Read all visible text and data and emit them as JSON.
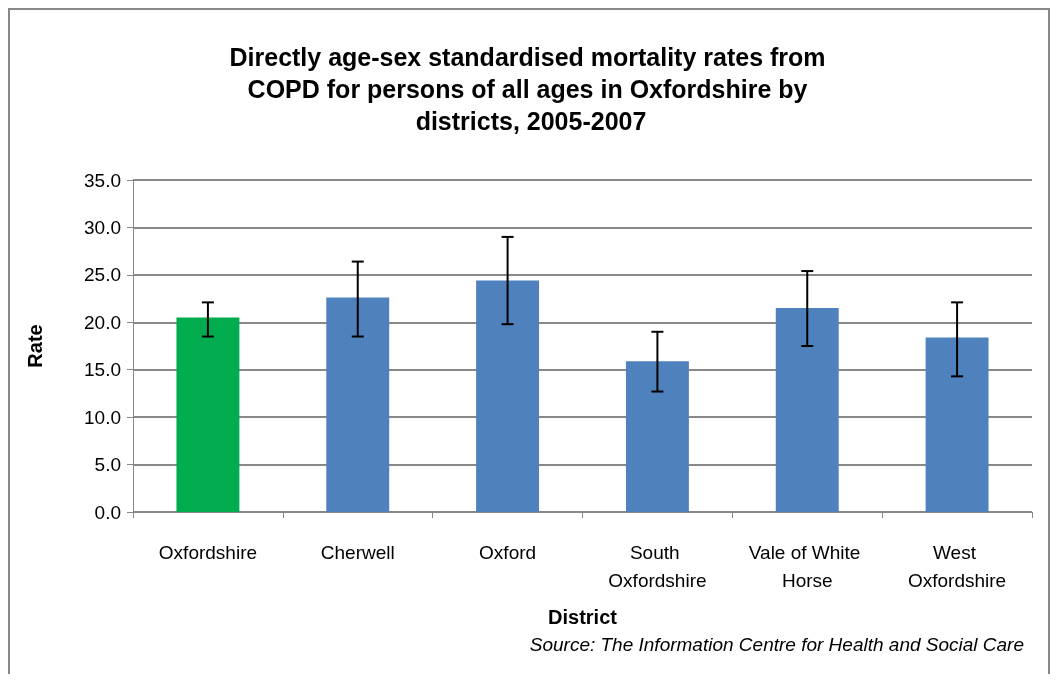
{
  "chart_data": {
    "type": "bar",
    "title": "Directly age-sex standardised mortality rates from COPD for persons of all ages in Oxfordshire by districts, 2005-2007",
    "xlabel": "District",
    "ylabel": "Rate",
    "categories": [
      "Oxfordshire",
      "Cherwell",
      "Oxford",
      "South Oxfordshire",
      "Vale of White Horse",
      "West Oxfordshire"
    ],
    "values": [
      20.5,
      22.6,
      24.4,
      15.9,
      21.5,
      18.4
    ],
    "colors": [
      "#00ac4e",
      "#4f81bd",
      "#4f81bd",
      "#4f81bd",
      "#4f81bd",
      "#4f81bd"
    ],
    "errors": [
      [
        18.5,
        22.1
      ],
      [
        18.5,
        26.4
      ],
      [
        19.8,
        29.0
      ],
      [
        12.7,
        19.0
      ],
      [
        17.5,
        25.4
      ],
      [
        14.3,
        22.1
      ]
    ],
    "ylim": [
      0,
      35
    ],
    "yticks": [
      {
        "value": 0,
        "label": "0.0"
      },
      {
        "value": 5,
        "label": "5.0"
      },
      {
        "value": 10,
        "label": "10.0"
      },
      {
        "value": 15,
        "label": "15.0"
      },
      {
        "value": 20,
        "label": "20.0"
      },
      {
        "value": 25,
        "label": "25.0"
      },
      {
        "value": 30,
        "label": "30.0"
      },
      {
        "value": 35,
        "label": "35.0"
      }
    ],
    "grid": "y",
    "annotations": [
      "Source: The Information Centre for Health and Social Care"
    ]
  }
}
